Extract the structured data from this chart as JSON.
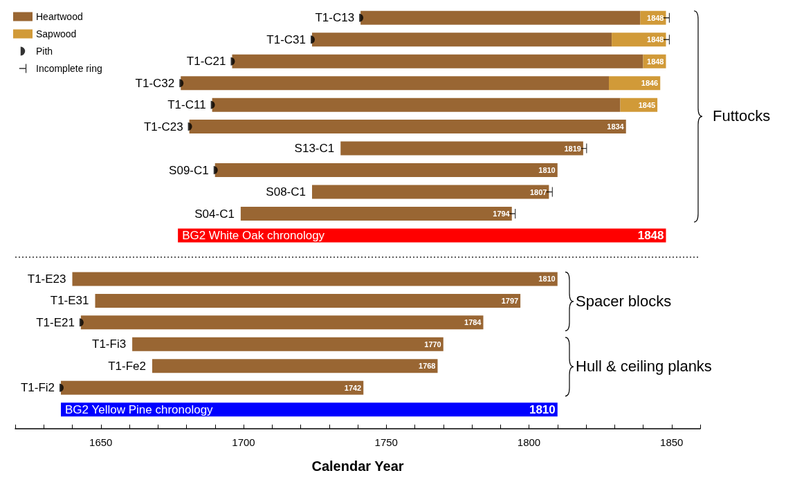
{
  "chart_data": {
    "type": "bar",
    "orientation": "horizontal",
    "xlabel": "Calendar Year",
    "legend": "top left",
    "categories": [
      "T1-C13",
      "T1-C31",
      "T1-C21",
      "T1-C32",
      "T1-C11",
      "T1-C23",
      "S13-C1",
      "S09-C1",
      "S08-C1",
      "S04-C1",
      "BG2 White Oak chronology",
      null,
      "T1-E23",
      "T1-E31",
      "T1-E21",
      "T1-Fi3",
      "T1-Fe2",
      "T1-Fi2",
      "BG2 Yellow Pine chronology"
    ],
    "series": [
      {
        "name": "Heartwood",
        "color": "#996633",
        "base": [
          1741,
          1724,
          1696,
          1678,
          1689,
          1681,
          1734,
          1690,
          1724,
          1699,
          null,
          null,
          1640,
          1648,
          1643,
          1661,
          1668,
          1636,
          null
        ],
        "values": [
          98,
          105,
          144,
          150,
          143,
          153,
          85,
          120,
          83,
          95,
          null,
          null,
          170,
          149,
          141,
          109,
          100,
          106,
          null
        ]
      },
      {
        "name": "Sapwood",
        "color": "#d19a38",
        "base": [
          1839,
          1829,
          1840,
          1828,
          1832,
          null,
          null,
          null,
          null,
          null,
          null,
          null,
          null,
          null,
          null,
          null,
          null,
          null,
          null
        ],
        "values": [
          9,
          19,
          8,
          18,
          13,
          null,
          null,
          null,
          null,
          null,
          null,
          null,
          null,
          null,
          null,
          null,
          null,
          null,
          null
        ]
      },
      {
        "color": "#ff0000",
        "base": [
          null,
          null,
          null,
          null,
          null,
          null,
          null,
          null,
          null,
          null,
          1677,
          null,
          null,
          null,
          null,
          null,
          null,
          null,
          null
        ],
        "values": [
          null,
          null,
          null,
          null,
          null,
          null,
          null,
          null,
          null,
          null,
          171,
          null,
          null,
          null,
          null,
          null,
          null,
          null,
          null
        ]
      },
      {
        "color": "#0000ff",
        "base": [
          null,
          null,
          null,
          null,
          null,
          null,
          null,
          null,
          null,
          null,
          null,
          null,
          null,
          null,
          null,
          null,
          null,
          null,
          1636
        ],
        "values": [
          null,
          null,
          null,
          null,
          null,
          null,
          null,
          null,
          null,
          null,
          null,
          null,
          null,
          null,
          null,
          null,
          null,
          null,
          174
        ]
      },
      {
        "name": "Pith",
        "type": "scatter",
        "marker": "circle",
        "color": "#000000",
        "values": [
          1741,
          1724,
          1696,
          1678,
          1689,
          1681,
          null,
          1690,
          null,
          null,
          null,
          null,
          null,
          null,
          1643,
          null,
          null,
          1636,
          null
        ]
      },
      {
        "name": "Incomplete ring",
        "type": "scatter",
        "marker": "cross",
        "color": "#000000",
        "values": [
          1848,
          1848,
          null,
          null,
          null,
          null,
          1819,
          null,
          1807,
          1794,
          null,
          null,
          null,
          null,
          null,
          null,
          null,
          null,
          null
        ]
      }
    ],
    "xlim": [
      1620,
      1860
    ],
    "xticks": [
      {
        "value": 1620,
        "label": null
      },
      {
        "value": 1630,
        "label": null
      },
      {
        "value": 1640,
        "label": null
      },
      1650,
      {
        "value": 1660,
        "label": null
      },
      {
        "value": 1670,
        "label": null
      },
      {
        "value": 1680,
        "label": null
      },
      {
        "value": 1690,
        "label": null
      },
      1700,
      {
        "value": 1710,
        "label": null
      },
      {
        "value": 1720,
        "label": null
      },
      {
        "value": 1730,
        "label": null
      },
      {
        "value": 1740,
        "label": null
      },
      1750,
      {
        "value": 1760,
        "label": null
      },
      {
        "value": 1770,
        "label": null
      },
      {
        "value": 1780,
        "label": null
      },
      {
        "value": 1790,
        "label": null
      },
      1800,
      {
        "value": 1810,
        "label": null
      },
      {
        "value": 1820,
        "label": null
      },
      {
        "value": 1830,
        "label": null
      },
      {
        "value": 1840,
        "label": null
      },
      1850,
      {
        "value": 1860,
        "label": null
      }
    ],
    "annotations": [
      "Futtocks",
      "Spacer blocks",
      "Hull & ceiling planks",
      {
        "text": "1848",
        "x": 1848,
        "y": "T1-C13"
      },
      {
        "text": "1848",
        "x": 1848,
        "y": "T1-C31"
      },
      {
        "text": "1848",
        "x": 1848,
        "y": "T1-C21"
      },
      {
        "text": "1846",
        "x": 1846,
        "y": "T1-C32"
      },
      {
        "text": "1845",
        "x": 1845,
        "y": "T1-C11"
      },
      {
        "text": "1834",
        "x": 1834,
        "y": "T1-C23"
      },
      {
        "text": "1819",
        "x": 1819,
        "y": "S13-C1"
      },
      {
        "text": "1810",
        "x": 1810,
        "y": "S09-C1"
      },
      {
        "text": "1807",
        "x": 1807,
        "y": "S08-C1"
      },
      {
        "text": "1794",
        "x": 1794,
        "y": "S04-C1"
      },
      {
        "text": "1848",
        "x": 1848,
        "y": "BG2 White Oak chronology"
      },
      {
        "text": "1810",
        "x": 1810,
        "y": "T1-E23"
      },
      {
        "text": "1797",
        "x": 1797,
        "y": "T1-E31"
      },
      {
        "text": "1784",
        "x": 1784,
        "y": "T1-E21"
      },
      {
        "text": "1770",
        "x": 1770,
        "y": "T1-Fi3"
      },
      {
        "text": "1768",
        "x": 1768,
        "y": "T1-Fe2"
      },
      {
        "text": "1742",
        "x": 1742,
        "y": "T1-Fi2"
      },
      {
        "text": "1810",
        "x": 1810,
        "y": "BG2 Yellow Pine chronology"
      }
    ]
  }
}
